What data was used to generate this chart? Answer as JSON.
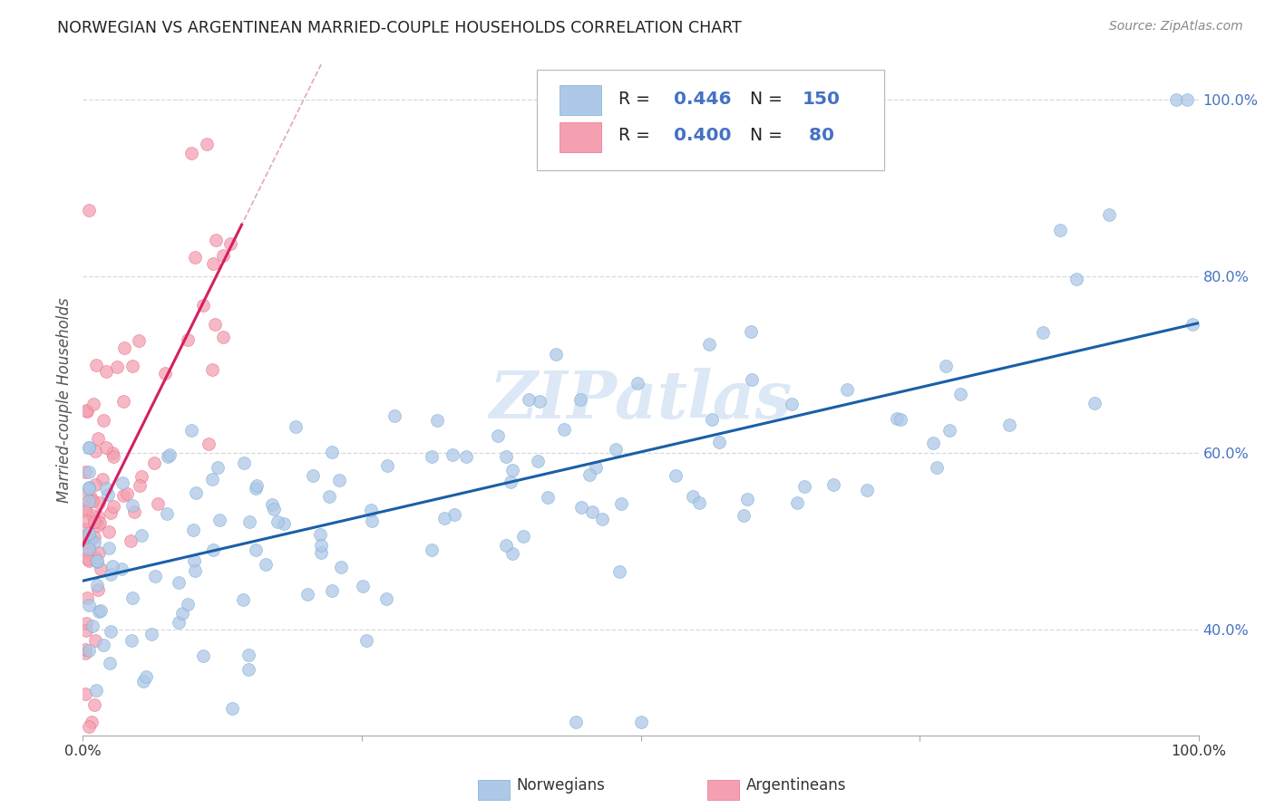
{
  "title": "NORWEGIAN VS ARGENTINEAN MARRIED-COUPLE HOUSEHOLDS CORRELATION CHART",
  "source": "Source: ZipAtlas.com",
  "ylabel": "Married-couple Households",
  "legend_R_nor": "0.446",
  "legend_N_nor": "150",
  "legend_R_arg": "0.400",
  "legend_N_arg": "80",
  "blue_color": "#aec8e8",
  "pink_color": "#f4a0b0",
  "blue_edge_color": "#7aafd4",
  "pink_edge_color": "#e87090",
  "blue_line_color": "#1a5fa8",
  "pink_line_color": "#d42060",
  "dashed_line_color": "#e090a8",
  "watermark": "ZIPatlas",
  "watermark_color": "#dce8f5",
  "xmin": 0.0,
  "xmax": 1.0,
  "ymin": 0.28,
  "ymax": 1.04,
  "right_yticks": [
    0.4,
    0.6,
    0.8,
    1.0
  ],
  "right_yticklabels": [
    "40.0%",
    "60.0%",
    "80.0%",
    "100.0%"
  ],
  "grid_color": "#d8d8d8",
  "nor_seed": 17,
  "arg_seed": 42,
  "marker_size": 100
}
